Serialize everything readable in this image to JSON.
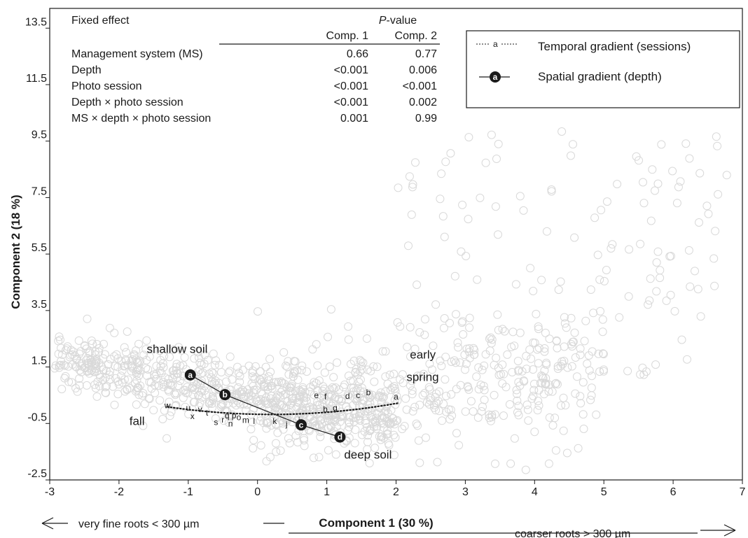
{
  "chart_data": {
    "type": "scatter",
    "xlabel": "Component 1 (30 %)",
    "ylabel": "Component 2 (18 %)",
    "xlim": [
      -3,
      7
    ],
    "ylim": [
      -2.5,
      14.2
    ],
    "x_ticks": [
      "-3",
      "-2",
      "-1",
      "0",
      "1",
      "2",
      "3",
      "4",
      "5",
      "6",
      "7"
    ],
    "y_ticks": [
      "-2.5",
      "-0.5",
      "1.5",
      "3.5",
      "5.5",
      "7.5",
      "9.5",
      "11.5",
      "13.5"
    ],
    "grid": false,
    "x_arrow_left": "very fine roots < 300 µm",
    "x_arrow_right": "coarser roots > 300 µm",
    "table": {
      "header_effect": "Fixed effect",
      "header_p_prefix": "P",
      "header_p_suffix": "-value",
      "col1": "Comp. 1",
      "col2": "Comp. 2",
      "rows": [
        {
          "effect": "Management system (MS)",
          "c1": "0.66",
          "c2": "0.77"
        },
        {
          "effect": "Depth",
          "c1": "<0.001",
          "c2": "0.006"
        },
        {
          "effect": "Photo session",
          "c1": "<0.001",
          "c2": "<0.001"
        },
        {
          "effect": "Depth × photo session",
          "c1": "<0.001",
          "c2": "0.002"
        },
        {
          "effect": "MS × depth × photo session",
          "c1": "0.001",
          "c2": "0.99"
        }
      ]
    },
    "legend": {
      "placement": "top-right",
      "entries": [
        {
          "symbol": "a",
          "label": "Temporal gradient (sessions)"
        },
        {
          "symbol": "a",
          "label": "Spatial gradient (depth)"
        }
      ]
    },
    "series": [
      {
        "name": "Temporal gradient (sessions)",
        "style": "dotted",
        "points": [
          {
            "label": "a",
            "x": 2.0,
            "y": 0.35
          },
          {
            "label": "b",
            "x": 1.6,
            "y": 0.5
          },
          {
            "label": "c",
            "x": 1.45,
            "y": 0.4
          },
          {
            "label": "d",
            "x": 1.3,
            "y": 0.38
          },
          {
            "label": "e",
            "x": 0.85,
            "y": 0.4
          },
          {
            "label": "f",
            "x": 0.98,
            "y": 0.35
          },
          {
            "label": "g",
            "x": 1.12,
            "y": -0.05
          },
          {
            "label": "h",
            "x": 0.98,
            "y": -0.1
          },
          {
            "label": "i",
            "x": 0.6,
            "y": -0.48
          },
          {
            "label": "j",
            "x": 0.42,
            "y": -0.62
          },
          {
            "label": "k",
            "x": 0.25,
            "y": -0.52
          },
          {
            "label": "l",
            "x": -0.05,
            "y": -0.52
          },
          {
            "label": "m",
            "x": -0.17,
            "y": -0.48
          },
          {
            "label": "o",
            "x": -0.27,
            "y": -0.38
          },
          {
            "label": "p",
            "x": -0.34,
            "y": -0.32
          },
          {
            "label": "q",
            "x": -0.44,
            "y": -0.32
          },
          {
            "label": "n",
            "x": -0.39,
            "y": -0.6
          },
          {
            "label": "r",
            "x": -0.5,
            "y": -0.47
          },
          {
            "label": "s",
            "x": -0.6,
            "y": -0.56
          },
          {
            "label": "t",
            "x": -0.73,
            "y": -0.22
          },
          {
            "label": "v",
            "x": -0.83,
            "y": -0.1
          },
          {
            "label": "x",
            "x": -0.94,
            "y": -0.35
          },
          {
            "label": "u",
            "x": -1.0,
            "y": -0.05
          },
          {
            "label": "w",
            "x": -1.3,
            "y": 0.04
          }
        ]
      },
      {
        "name": "Spatial gradient (depth)",
        "style": "solid",
        "points": [
          {
            "label": "a",
            "x": -0.97,
            "y": 1.22
          },
          {
            "label": "b",
            "x": -0.47,
            "y": 0.52
          },
          {
            "label": "c",
            "x": 0.63,
            "y": -0.55
          },
          {
            "label": "d",
            "x": 1.19,
            "y": -0.98
          }
        ]
      }
    ],
    "annotations": [
      {
        "text": "shallow soil",
        "x": -1.6,
        "y": 2.0
      },
      {
        "text": "early",
        "x": 2.2,
        "y": 1.8
      },
      {
        "text": "spring",
        "x": 2.15,
        "y": 1.0
      },
      {
        "text": "fall",
        "x": -1.85,
        "y": -0.55
      },
      {
        "text": "deep soil",
        "x": 1.25,
        "y": -1.75
      }
    ],
    "background_points": "dense light-grey open circles, unlabeled"
  }
}
